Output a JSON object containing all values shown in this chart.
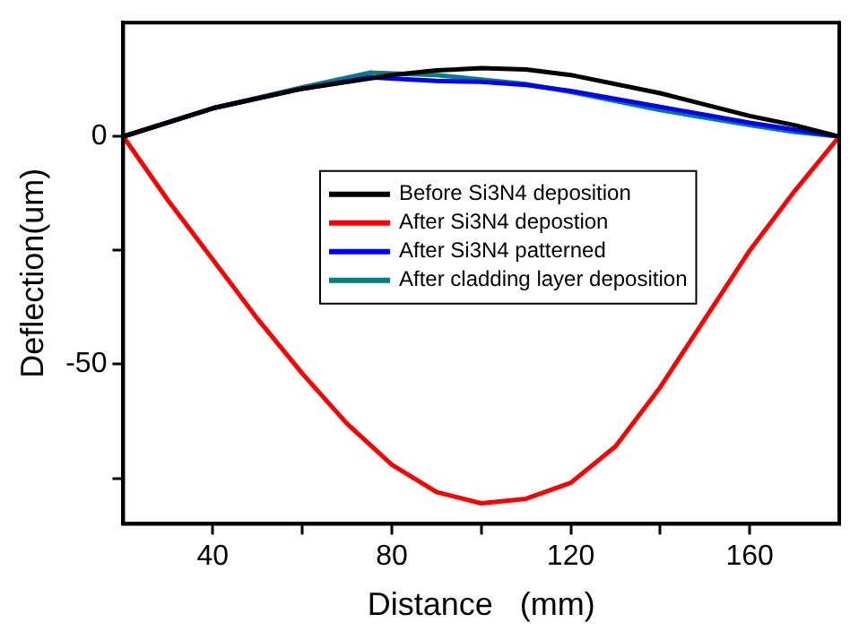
{
  "chart_data": {
    "type": "line",
    "xlabel": "Distance   (mm)",
    "ylabel": "Deflection(um)",
    "xlim": [
      20,
      180
    ],
    "xticks": [
      40,
      {
        "value": 60,
        "label": null
      },
      80,
      {
        "value": 100,
        "label": null
      },
      120,
      {
        "value": 140,
        "label": null
      },
      160
    ],
    "ylim": [
      -85,
      25
    ],
    "yticks": [
      {
        "value": -75,
        "label": null
      },
      -50,
      {
        "value": -25,
        "label": null
      },
      0
    ],
    "grid": false,
    "legend": "center",
    "marker": "none",
    "line_style": "solid",
    "series": [
      {
        "name": "Before Si3N4 deposition",
        "color": "#000000",
        "x": [
          20,
          40,
          60,
          80,
          90,
          100,
          110,
          120,
          140,
          160,
          170,
          180
        ],
        "values": [
          0,
          6.2,
          10.5,
          13.5,
          14.5,
          15,
          14.7,
          13.5,
          9.5,
          4.5,
          2.5,
          0
        ]
      },
      {
        "name": "After Si3N4 depostion",
        "color": "#ff0000",
        "x": [
          20,
          30,
          40,
          50,
          60,
          70,
          80,
          90,
          100,
          110,
          120,
          130,
          140,
          150,
          160,
          170,
          180
        ],
        "values": [
          0,
          -14,
          -27,
          -40,
          -52,
          -63,
          -72,
          -78,
          -80.5,
          -79.5,
          -76,
          -68,
          -55,
          -40,
          -25,
          -12,
          0
        ]
      },
      {
        "name": "After Si3N4 patterned",
        "color": "#0000ff",
        "x": [
          20,
          40,
          60,
          75,
          90,
          100,
          110,
          120,
          140,
          160,
          170,
          180
        ],
        "values": [
          0,
          6.2,
          10.5,
          13,
          12.2,
          12,
          11.3,
          10,
          6.5,
          3,
          1.5,
          0
        ]
      },
      {
        "name": "After cladding layer deposition",
        "color": "#008080",
        "x": [
          20,
          40,
          60,
          75,
          90,
          100,
          110,
          120,
          140,
          160,
          170,
          180
        ],
        "values": [
          0,
          6.2,
          10.8,
          14,
          13.5,
          12.5,
          11.5,
          9.8,
          5.8,
          2.5,
          1,
          0
        ]
      }
    ]
  }
}
